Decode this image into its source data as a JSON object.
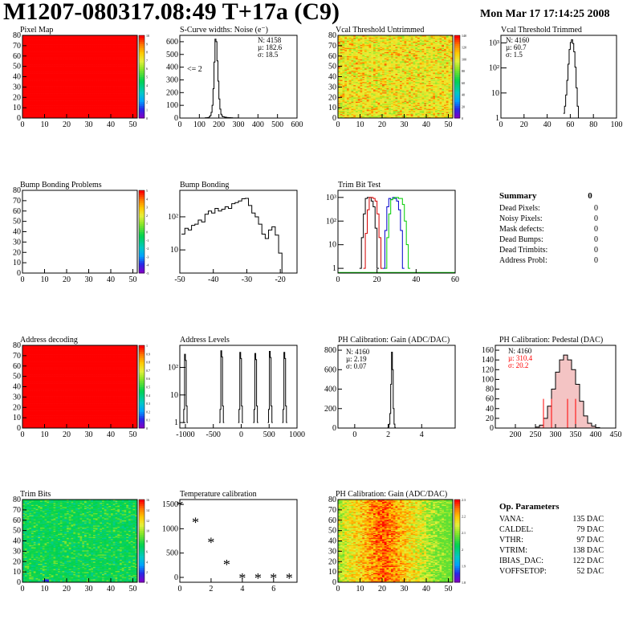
{
  "header": {
    "title": "M1207-080317.08:49 T+17a (C9)",
    "date": "Mon Mar 17 17:14:25 2008"
  },
  "colors": {
    "red": "#ff0000",
    "yellow": "#e8f040",
    "green_pixels": "#44cc44",
    "trim_black": "#000000",
    "trim_red": "#d40000",
    "trim_blue": "#0000cc",
    "trim_green": "#00cc00",
    "pedestal_fill": "#f4c4c4"
  },
  "panels": {
    "pixel_map": {
      "title": "Pixel Map",
      "x_ticks": [
        "0",
        "10",
        "20",
        "30",
        "40",
        "50"
      ],
      "y_ticks": [
        "0",
        "10",
        "20",
        "30",
        "40",
        "50",
        "60",
        "70",
        "80"
      ],
      "z_ticks": [
        "0",
        "1",
        "2",
        "3",
        "4",
        "5",
        "6",
        "7",
        "8",
        "9",
        "10"
      ]
    },
    "scurve": {
      "title": "S-Curve widths: Noise (e⁻)",
      "x_ticks": [
        "0",
        "100",
        "200",
        "300",
        "400",
        "500",
        "600"
      ],
      "y_ticks": [
        "0",
        "100",
        "200",
        "300",
        "400",
        "500",
        "600"
      ],
      "annotation": "<= 2",
      "stats": [
        "N: 4158",
        "µ: 182.6",
        "σ: 18.5"
      ]
    },
    "vcal_untrimmed": {
      "title": "Vcal Threshold Untrimmed",
      "x_ticks": [
        "0",
        "10",
        "20",
        "30",
        "40",
        "50"
      ],
      "y_ticks": [
        "0",
        "10",
        "20",
        "30",
        "40",
        "50",
        "60",
        "70",
        "80"
      ],
      "z_ticks": [
        "0",
        "20",
        "40",
        "60",
        "80",
        "100",
        "120",
        "140"
      ]
    },
    "vcal_trimmed": {
      "title": "Vcal Threshold Trimmed",
      "x_ticks": [
        "0",
        "20",
        "40",
        "60",
        "80",
        "100"
      ],
      "y_ticks": [
        "1",
        "10",
        "10²",
        "10³"
      ],
      "stats": [
        "N: 4160",
        "µ: 60.7",
        "σ:  1.5"
      ]
    },
    "bump_problems": {
      "title": "Bump Bonding Problems",
      "x_ticks": [
        "0",
        "10",
        "20",
        "30",
        "40",
        "50"
      ],
      "y_ticks": [
        "0",
        "10",
        "20",
        "30",
        "40",
        "50",
        "60",
        "70",
        "80"
      ],
      "z_ticks": [
        "-5",
        "-4",
        "-3",
        "-2",
        "-1",
        "0",
        "1",
        "2",
        "3",
        "4",
        "5"
      ]
    },
    "bump_bonding": {
      "title": "Bump Bonding",
      "x_ticks": [
        "-50",
        "-40",
        "-30",
        "-20"
      ],
      "y_ticks": [
        "10",
        "10²"
      ]
    },
    "trim_bit": {
      "title": "Trim Bit Test",
      "x_ticks": [
        "0",
        "20",
        "40",
        "60"
      ],
      "y_ticks": [
        "1",
        "10",
        "10²",
        "10³"
      ]
    },
    "summary": {
      "title": "Summary",
      "total": "0",
      "rows": [
        {
          "label": "Dead Pixels:",
          "value": "0"
        },
        {
          "label": "Noisy Pixels:",
          "value": "0"
        },
        {
          "label": "Mask defects:",
          "value": "0"
        },
        {
          "label": "Dead Bumps:",
          "value": "0"
        },
        {
          "label": "Dead Trimbits:",
          "value": "0"
        },
        {
          "label": "Address Probl:",
          "value": "0"
        }
      ]
    },
    "address_decoding": {
      "title": "Address decoding",
      "x_ticks": [
        "0",
        "10",
        "20",
        "30",
        "40",
        "50"
      ],
      "y_ticks": [
        "0",
        "10",
        "20",
        "30",
        "40",
        "50",
        "60",
        "70",
        "80"
      ],
      "z_ticks": [
        "0",
        "0.1",
        "0.2",
        "0.3",
        "0.4",
        "0.5",
        "0.6",
        "0.7",
        "0.8",
        "0.9",
        "1"
      ]
    },
    "address_levels": {
      "title": "Address Levels",
      "x_ticks": [
        "-1000",
        "-500",
        "0",
        "500",
        "1000"
      ],
      "y_ticks": [
        "1",
        "10",
        "10²"
      ]
    },
    "ph_gain": {
      "title": "PH Calibration: Gain (ADC/DAC)",
      "x_ticks": [
        "0",
        "2",
        "4"
      ],
      "y_ticks": [
        "0",
        "200",
        "400",
        "600",
        "800"
      ],
      "stats": [
        "N: 4160",
        "µ: 2.19",
        "σ: 0.07"
      ]
    },
    "ph_pedestal": {
      "title": "PH Calibration: Pedestal (DAC)",
      "x_ticks": [
        "200",
        "250",
        "300",
        "350",
        "400",
        "450"
      ],
      "y_ticks": [
        "0",
        "20",
        "40",
        "60",
        "80",
        "100",
        "120",
        "140",
        "160"
      ],
      "stats": [
        "N: 4160",
        "µ: 310.4",
        "σ: 20.2"
      ]
    },
    "trim_bits": {
      "title": "Trim Bits",
      "x_ticks": [
        "0",
        "10",
        "20",
        "30",
        "40",
        "50"
      ],
      "y_ticks": [
        "0",
        "10",
        "20",
        "30",
        "40",
        "50",
        "60",
        "70",
        "80"
      ],
      "z_ticks": [
        "0",
        "2",
        "4",
        "6",
        "8",
        "10",
        "12",
        "14",
        "16"
      ]
    },
    "temperature": {
      "title": "Temperature calibration",
      "x_ticks": [
        "0",
        "2",
        "4",
        "6"
      ],
      "y_ticks": [
        "0",
        "500",
        "1000",
        "1500"
      ]
    },
    "ph_gain_map": {
      "title": "PH Calibration: Gain (ADC/DAC)",
      "x_ticks": [
        "0",
        "10",
        "20",
        "30",
        "40",
        "50"
      ],
      "y_ticks": [
        "0",
        "10",
        "20",
        "30",
        "40",
        "50",
        "60",
        "70",
        "80"
      ],
      "z_ticks": [
        "1.8",
        "1.9",
        "2",
        "2.1",
        "2.2",
        "2.3"
      ]
    },
    "op_params": {
      "title": "Op. Parameters",
      "rows": [
        {
          "label": "VANA:",
          "value": "135 DAC"
        },
        {
          "label": "CALDEL:",
          "value": "79 DAC"
        },
        {
          "label": "VTHR:",
          "value": "97 DAC"
        },
        {
          "label": "VTRIM:",
          "value": "138 DAC"
        },
        {
          "label": "IBIAS_DAC:",
          "value": "122 DAC"
        },
        {
          "label": "VOFFSETOP:",
          "value": "52 DAC"
        }
      ]
    }
  },
  "chart_data": [
    {
      "type": "heatmap",
      "title": "Pixel Map",
      "xlim": [
        0,
        52
      ],
      "ylim": [
        0,
        80
      ],
      "zlim": [
        0,
        10
      ],
      "uniform_value": 10
    },
    {
      "type": "bar",
      "title": "S-Curve widths: Noise (e⁻)",
      "xlim": [
        0,
        600
      ],
      "ylim": [
        0,
        650
      ],
      "x": [
        120,
        130,
        140,
        150,
        155,
        160,
        165,
        170,
        175,
        180,
        185,
        190,
        195,
        200,
        205,
        210,
        215,
        220,
        230,
        240,
        250,
        260,
        270,
        280,
        290,
        300
      ],
      "values": [
        0,
        2,
        4,
        10,
        20,
        45,
        100,
        230,
        440,
        620,
        600,
        450,
        290,
        150,
        70,
        30,
        15,
        10,
        6,
        4,
        3,
        2,
        1,
        1,
        1,
        0
      ]
    },
    {
      "type": "heatmap",
      "title": "Vcal Threshold Untrimmed",
      "xlim": [
        0,
        52
      ],
      "ylim": [
        0,
        80
      ],
      "zlim": [
        0,
        145
      ],
      "typical_value": 85
    },
    {
      "type": "bar",
      "title": "Vcal Threshold Trimmed",
      "xlim": [
        0,
        100
      ],
      "log_y": true,
      "x": [
        54,
        55,
        56,
        57,
        58,
        59,
        60,
        61,
        62,
        63,
        64,
        65,
        66,
        67
      ],
      "values": [
        1,
        2,
        6,
        25,
        120,
        500,
        1000,
        1300,
        900,
        400,
        90,
        12,
        2,
        0
      ]
    },
    {
      "type": "heatmap",
      "title": "Bump Bonding Problems",
      "xlim": [
        0,
        52
      ],
      "ylim": [
        0,
        80
      ],
      "zlim": [
        -5,
        5
      ],
      "uniform_value": 0
    },
    {
      "type": "bar",
      "title": "Bump Bonding",
      "xlim": [
        -50,
        -15
      ],
      "log_y": true,
      "x": [
        -49,
        -48,
        -47,
        -46,
        -45,
        -44,
        -43,
        -42,
        -41,
        -40,
        -39,
        -38,
        -37,
        -36,
        -35,
        -34,
        -33,
        -32,
        -31,
        -30,
        -29,
        -28,
        -27,
        -26,
        -25,
        -24,
        -23,
        -22,
        -21,
        -20,
        -19
      ],
      "values": [
        30,
        45,
        40,
        55,
        60,
        80,
        70,
        120,
        150,
        130,
        180,
        150,
        170,
        200,
        180,
        250,
        270,
        300,
        350,
        360,
        220,
        130,
        100,
        60,
        30,
        22,
        40,
        50,
        28,
        8,
        2
      ]
    },
    {
      "type": "line",
      "title": "Trim Bit Test",
      "xlim": [
        0,
        60
      ],
      "log_y": true,
      "series": [
        {
          "color": "black",
          "x": [
            11,
            12,
            13,
            14,
            15,
            16,
            17,
            18,
            19,
            20
          ],
          "values": [
            1,
            20,
            200,
            900,
            1000,
            1000,
            700,
            400,
            50,
            1
          ]
        },
        {
          "color": "red",
          "x": [
            13,
            14,
            15,
            16,
            17,
            18,
            19,
            20,
            21,
            22
          ],
          "values": [
            1,
            30,
            300,
            1000,
            1000,
            900,
            700,
            200,
            20,
            1
          ]
        },
        {
          "color": "blue",
          "x": [
            23,
            24,
            25,
            26,
            27,
            28,
            29,
            30,
            31,
            32,
            33
          ],
          "values": [
            1,
            40,
            400,
            900,
            800,
            1000,
            900,
            700,
            300,
            40,
            1
          ]
        },
        {
          "color": "green",
          "x": [
            24,
            25,
            26,
            27,
            28,
            29,
            30,
            31,
            32,
            33,
            34,
            35,
            36
          ],
          "values": [
            1,
            20,
            200,
            800,
            900,
            1000,
            1000,
            900,
            900,
            500,
            100,
            10,
            1
          ]
        }
      ]
    },
    {
      "type": "heatmap",
      "title": "Address decoding",
      "xlim": [
        0,
        52
      ],
      "ylim": [
        0,
        80
      ],
      "zlim": [
        0,
        1
      ],
      "uniform_value": 1
    },
    {
      "type": "bar",
      "title": "Address Levels",
      "xlim": [
        -1100,
        1000
      ],
      "log_y": true,
      "peaks": [
        -1000,
        -350,
        -10,
        260,
        520,
        780
      ],
      "peak_heights": [
        300,
        400,
        350,
        320,
        380,
        350
      ]
    },
    {
      "type": "bar",
      "title": "PH Calibration: Gain (ADC/DAC)",
      "xlim": [
        -1,
        6
      ],
      "ylim": [
        0,
        850
      ],
      "x": [
        1.95,
        2.0,
        2.05,
        2.1,
        2.15,
        2.2,
        2.25,
        2.3,
        2.35,
        2.4
      ],
      "values": [
        2,
        10,
        40,
        150,
        450,
        780,
        600,
        200,
        40,
        5
      ]
    },
    {
      "type": "bar",
      "title": "PH Calibration: Pedestal (DAC)",
      "xlim": [
        150,
        450
      ],
      "ylim": [
        0,
        170
      ],
      "x": [
        250,
        260,
        270,
        280,
        290,
        300,
        310,
        320,
        330,
        340,
        350,
        360,
        370,
        380,
        390,
        400
      ],
      "values": [
        2,
        6,
        20,
        45,
        80,
        115,
        140,
        150,
        140,
        120,
        90,
        55,
        25,
        10,
        4,
        1
      ],
      "fit_markers": [
        270,
        290,
        330,
        350
      ]
    },
    {
      "type": "heatmap",
      "title": "Trim Bits",
      "xlim": [
        0,
        52
      ],
      "ylim": [
        0,
        80
      ],
      "zlim": [
        0,
        16
      ],
      "typical_value": 7
    },
    {
      "type": "scatter",
      "title": "Temperature calibration",
      "xlim": [
        0,
        7.5
      ],
      "ylim": [
        -100,
        1600
      ],
      "x": [
        0,
        1,
        2,
        3,
        4,
        5,
        6,
        7
      ],
      "values": [
        1480,
        1130,
        720,
        260,
        -20,
        -20,
        -20,
        -20
      ]
    },
    {
      "type": "heatmap",
      "title": "PH Calibration: Gain (ADC/DAC)",
      "xlim": [
        0,
        52
      ],
      "ylim": [
        0,
        80
      ],
      "zlim": [
        1.75,
        2.35
      ],
      "typical_value": 2.15
    }
  ]
}
